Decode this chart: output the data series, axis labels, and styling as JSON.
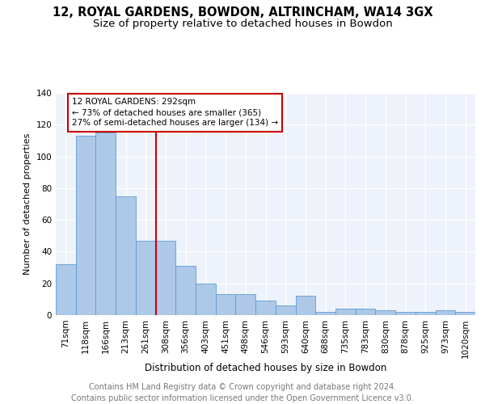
{
  "title": "12, ROYAL GARDENS, BOWDON, ALTRINCHAM, WA14 3GX",
  "subtitle": "Size of property relative to detached houses in Bowdon",
  "xlabel": "Distribution of detached houses by size in Bowdon",
  "ylabel": "Number of detached properties",
  "categories": [
    "71sqm",
    "118sqm",
    "166sqm",
    "213sqm",
    "261sqm",
    "308sqm",
    "356sqm",
    "403sqm",
    "451sqm",
    "498sqm",
    "546sqm",
    "593sqm",
    "640sqm",
    "688sqm",
    "735sqm",
    "783sqm",
    "830sqm",
    "878sqm",
    "925sqm",
    "973sqm",
    "1020sqm"
  ],
  "values": [
    32,
    113,
    115,
    75,
    47,
    47,
    31,
    20,
    13,
    13,
    9,
    6,
    12,
    2,
    4,
    4,
    3,
    2,
    2,
    3,
    2
  ],
  "bar_color": "#aec8e8",
  "bar_edge_color": "#5a9fd4",
  "annotation_text": "12 ROYAL GARDENS: 292sqm\n← 73% of detached houses are smaller (365)\n27% of semi-detached houses are larger (134) →",
  "red_line_color": "#cc0000",
  "annotation_box_color": "#ffffff",
  "annotation_box_edge": "#cc0000",
  "footer_line1": "Contains HM Land Registry data © Crown copyright and database right 2024.",
  "footer_line2": "Contains public sector information licensed under the Open Government Licence v3.0.",
  "ylim": [
    0,
    140
  ],
  "yticks": [
    0,
    20,
    40,
    60,
    80,
    100,
    120,
    140
  ],
  "background_color": "#eef2fa",
  "grid_color": "#ffffff",
  "title_fontsize": 10.5,
  "subtitle_fontsize": 9.5,
  "ylabel_fontsize": 8,
  "xlabel_fontsize": 8.5,
  "tick_fontsize": 7.5,
  "footer_fontsize": 7,
  "ann_fontsize": 7.5,
  "red_line_x": 4.5
}
